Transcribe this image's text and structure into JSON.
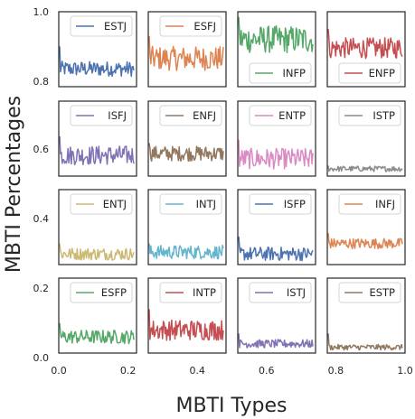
{
  "chart_data": {
    "type": "line",
    "xlabel": "MBTI Types",
    "ylabel": "MBTI Percentages",
    "xlim": [
      0.0,
      1.0
    ],
    "ylim": [
      0.0,
      1.0
    ],
    "x_ticks": [
      "0.0",
      "0.2",
      "0.4",
      "0.6",
      "0.8",
      "1.0"
    ],
    "y_ticks": [
      "0.0",
      "0.2",
      "0.4",
      "0.6",
      "0.8",
      "1.0"
    ],
    "grid": false,
    "panels": [
      {
        "name": "ESTJ",
        "color": "#4c72b0",
        "legend": "top-right",
        "level": 0.835,
        "amp": 0.022,
        "spike": 0.9
      },
      {
        "name": "ESFJ",
        "color": "#dd8452",
        "legend": "top-right",
        "level": 0.865,
        "amp": 0.035,
        "spike": 0.93
      },
      {
        "name": "INFP",
        "color": "#55a868",
        "legend": "bottom-right",
        "level": 0.92,
        "amp": 0.04,
        "spike": 0.985
      },
      {
        "name": "ENFP",
        "color": "#c44e52",
        "legend": "bottom-right",
        "level": 0.895,
        "amp": 0.03,
        "spike": 0.95
      },
      {
        "name": "ISFJ",
        "color": "#8172b3",
        "legend": "top-right",
        "level": 0.585,
        "amp": 0.028,
        "spike": 0.64
      },
      {
        "name": "ENFJ",
        "color": "#937860",
        "legend": "top-right",
        "level": 0.59,
        "amp": 0.022,
        "spike": 0.62
      },
      {
        "name": "ENTP",
        "color": "#da8bc3",
        "legend": "top-right",
        "level": 0.575,
        "amp": 0.03,
        "spike": 0.63
      },
      {
        "name": "ISTP",
        "color": "#8c8c8c",
        "legend": "top-right",
        "level": 0.546,
        "amp": 0.008,
        "spike": 0.555
      },
      {
        "name": "ENTJ",
        "color": "#ccb974",
        "legend": "top-right",
        "level": 0.3,
        "amp": 0.018,
        "spike": 0.33
      },
      {
        "name": "INTJ",
        "color": "#64b5cd",
        "legend": "top-right",
        "level": 0.305,
        "amp": 0.02,
        "spike": 0.33
      },
      {
        "name": "ISFP",
        "color": "#4c72b0",
        "legend": "top-right",
        "level": 0.3,
        "amp": 0.02,
        "spike": 0.35
      },
      {
        "name": "INFJ",
        "color": "#dd8452",
        "legend": "top-right",
        "level": 0.33,
        "amp": 0.015,
        "spike": 0.36
      },
      {
        "name": "ESFP",
        "color": "#55a868",
        "legend": "top-right",
        "level": 0.06,
        "amp": 0.02,
        "spike": 0.1
      },
      {
        "name": "INTP",
        "color": "#c44e52",
        "legend": "top-right",
        "level": 0.08,
        "amp": 0.03,
        "spike": 0.14
      },
      {
        "name": "ISTJ",
        "color": "#8172b3",
        "legend": "top-right",
        "level": 0.04,
        "amp": 0.012,
        "spike": 0.07
      },
      {
        "name": "ESTP",
        "color": "#937860",
        "legend": "top-right",
        "level": 0.03,
        "amp": 0.008,
        "spike": 0.07
      }
    ]
  }
}
